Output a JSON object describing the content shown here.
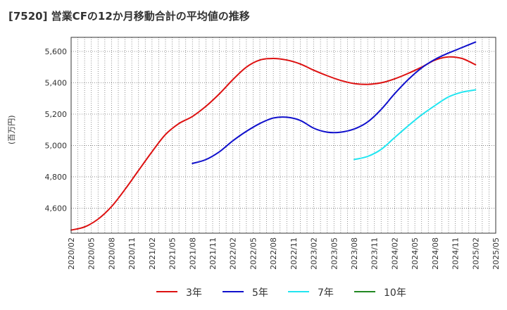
{
  "chart_data": {
    "type": "line",
    "title": "[7520]  営業CFの12か月移動合計の平均値の推移",
    "ylabel": "(百万円)",
    "xlabel": "",
    "x_ticks": [
      "2020/02",
      "2020/05",
      "2020/08",
      "2020/11",
      "2021/02",
      "2021/05",
      "2021/08",
      "2021/11",
      "2022/02",
      "2022/05",
      "2022/08",
      "2022/11",
      "2023/02",
      "2023/05",
      "2023/08",
      "2023/11",
      "2024/02",
      "2024/05",
      "2024/08",
      "2024/11",
      "2025/02",
      "2025/05"
    ],
    "y_ticks": [
      4600,
      4800,
      5000,
      5200,
      5400,
      5600
    ],
    "ylim": [
      4440,
      5690
    ],
    "grid": true,
    "legend_position": "bottom",
    "series": [
      {
        "name": "3年",
        "color": "#dd1111",
        "x": [
          "2020/02",
          "2020/04",
          "2020/06",
          "2020/08",
          "2020/10",
          "2020/12",
          "2021/02",
          "2021/04",
          "2021/06",
          "2021/08",
          "2021/10",
          "2021/12",
          "2022/02",
          "2022/04",
          "2022/06",
          "2022/08",
          "2022/10",
          "2022/12",
          "2023/02",
          "2023/04",
          "2023/06",
          "2023/08",
          "2023/10",
          "2023/12",
          "2024/02",
          "2024/04",
          "2024/06",
          "2024/08",
          "2024/10",
          "2024/12",
          "2025/02"
        ],
        "values": [
          4460,
          4480,
          4530,
          4610,
          4720,
          4840,
          4960,
          5070,
          5140,
          5185,
          5250,
          5330,
          5420,
          5500,
          5545,
          5555,
          5545,
          5520,
          5480,
          5445,
          5415,
          5395,
          5390,
          5400,
          5425,
          5460,
          5500,
          5545,
          5565,
          5555,
          5515
        ]
      },
      {
        "name": "5年",
        "color": "#1010cc",
        "x": [
          "2021/08",
          "2021/10",
          "2021/12",
          "2022/02",
          "2022/04",
          "2022/06",
          "2022/08",
          "2022/10",
          "2022/12",
          "2023/02",
          "2023/04",
          "2023/06",
          "2023/08",
          "2023/10",
          "2023/12",
          "2024/02",
          "2024/04",
          "2024/06",
          "2024/08",
          "2024/10",
          "2024/12",
          "2025/02"
        ],
        "values": [
          4885,
          4910,
          4960,
          5030,
          5090,
          5140,
          5175,
          5180,
          5160,
          5110,
          5085,
          5085,
          5105,
          5150,
          5230,
          5330,
          5420,
          5495,
          5550,
          5590,
          5625,
          5660
        ]
      },
      {
        "name": "7年",
        "color": "#22e5f0",
        "x": [
          "2023/08",
          "2023/10",
          "2023/12",
          "2024/02",
          "2024/04",
          "2024/06",
          "2024/08",
          "2024/10",
          "2024/12",
          "2025/02"
        ],
        "values": [
          4910,
          4930,
          4975,
          5050,
          5125,
          5195,
          5255,
          5310,
          5340,
          5355
        ]
      },
      {
        "name": "10年",
        "color": "#228822",
        "x": [],
        "values": []
      }
    ]
  }
}
